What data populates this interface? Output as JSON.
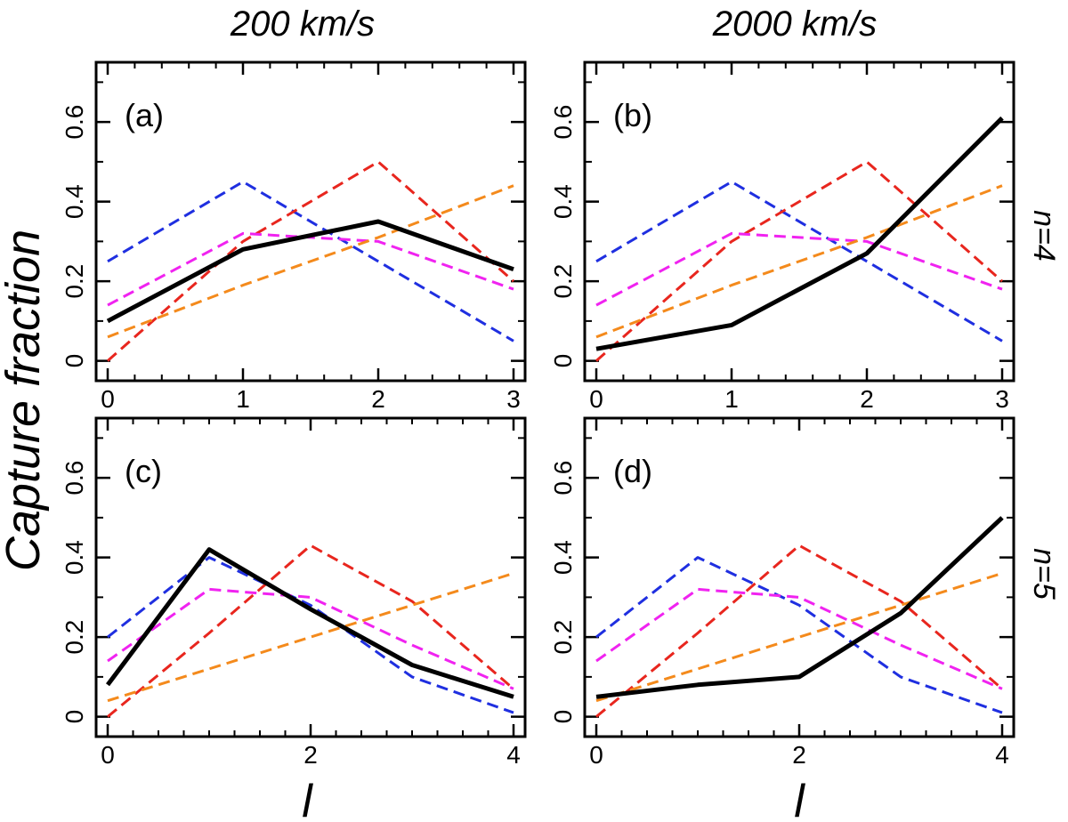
{
  "figure": {
    "ylabel": "Capture fraction",
    "col_titles": [
      "200 km/s",
      "2000 km/s"
    ],
    "row_labels": [
      "n=4",
      "n=5"
    ],
    "xlabel": "l"
  },
  "colors": {
    "blue": "#1f2fe0",
    "red": "#e8261e",
    "magenta": "#f023f0",
    "orange": "#f48a1c",
    "black": "#000000"
  },
  "chart_data": [
    {
      "type": "line",
      "panel_label": "(a)",
      "xlim": [
        0,
        3
      ],
      "ylim": [
        -0.05,
        0.75
      ],
      "xticks": [
        0,
        1,
        2,
        3
      ],
      "yticks": [
        0,
        0.2,
        0.4,
        0.6
      ],
      "ytick_labels": [
        "0",
        "0.2",
        "0.4",
        "0.6"
      ],
      "x": [
        0,
        1,
        2,
        3
      ],
      "series": [
        {
          "color": "blue",
          "style": "dashed",
          "values": [
            0.25,
            0.45,
            0.25,
            0.05
          ]
        },
        {
          "color": "red",
          "style": "dashed",
          "values": [
            0.0,
            0.3,
            0.5,
            0.2
          ]
        },
        {
          "color": "magenta",
          "style": "dashed",
          "values": [
            0.14,
            0.32,
            0.3,
            0.18
          ]
        },
        {
          "color": "orange",
          "style": "dashed",
          "values": [
            0.06,
            0.19,
            0.31,
            0.44
          ]
        },
        {
          "color": "black",
          "style": "solid",
          "values": [
            0.1,
            0.28,
            0.35,
            0.23
          ]
        }
      ]
    },
    {
      "type": "line",
      "panel_label": "(b)",
      "xlim": [
        0,
        3
      ],
      "ylim": [
        -0.05,
        0.75
      ],
      "xticks": [
        0,
        1,
        2,
        3
      ],
      "yticks": [
        0,
        0.2,
        0.4,
        0.6
      ],
      "ytick_labels": [
        "0",
        "0.2",
        "0.4",
        "0.6"
      ],
      "x": [
        0,
        1,
        2,
        3
      ],
      "series": [
        {
          "color": "blue",
          "style": "dashed",
          "values": [
            0.25,
            0.45,
            0.25,
            0.05
          ]
        },
        {
          "color": "red",
          "style": "dashed",
          "values": [
            0.0,
            0.3,
            0.5,
            0.2
          ]
        },
        {
          "color": "magenta",
          "style": "dashed",
          "values": [
            0.14,
            0.32,
            0.3,
            0.18
          ]
        },
        {
          "color": "orange",
          "style": "dashed",
          "values": [
            0.06,
            0.19,
            0.31,
            0.44
          ]
        },
        {
          "color": "black",
          "style": "solid",
          "values": [
            0.03,
            0.09,
            0.27,
            0.61
          ]
        }
      ]
    },
    {
      "type": "line",
      "panel_label": "(c)",
      "xlim": [
        0,
        4
      ],
      "ylim": [
        -0.05,
        0.75
      ],
      "xticks": [
        0,
        2,
        4
      ],
      "yticks": [
        0,
        0.2,
        0.4,
        0.6
      ],
      "ytick_labels": [
        "0",
        "0.2",
        "0.4",
        "0.6"
      ],
      "x": [
        0,
        1,
        2,
        3,
        4
      ],
      "series": [
        {
          "color": "blue",
          "style": "dashed",
          "values": [
            0.2,
            0.4,
            0.28,
            0.1,
            0.01
          ]
        },
        {
          "color": "red",
          "style": "dashed",
          "values": [
            0.0,
            0.21,
            0.43,
            0.29,
            0.07
          ]
        },
        {
          "color": "magenta",
          "style": "dashed",
          "values": [
            0.14,
            0.32,
            0.3,
            0.18,
            0.07
          ]
        },
        {
          "color": "orange",
          "style": "dashed",
          "values": [
            0.04,
            0.12,
            0.2,
            0.28,
            0.36
          ]
        },
        {
          "color": "black",
          "style": "solid",
          "values": [
            0.08,
            0.42,
            0.27,
            0.13,
            0.05
          ]
        }
      ]
    },
    {
      "type": "line",
      "panel_label": "(d)",
      "xlim": [
        0,
        4
      ],
      "ylim": [
        -0.05,
        0.75
      ],
      "xticks": [
        0,
        2,
        4
      ],
      "yticks": [
        0,
        0.2,
        0.4,
        0.6
      ],
      "ytick_labels": [
        "0",
        "0.2",
        "0.4",
        "0.6"
      ],
      "x": [
        0,
        1,
        2,
        3,
        4
      ],
      "series": [
        {
          "color": "blue",
          "style": "dashed",
          "values": [
            0.2,
            0.4,
            0.28,
            0.1,
            0.01
          ]
        },
        {
          "color": "red",
          "style": "dashed",
          "values": [
            0.0,
            0.21,
            0.43,
            0.29,
            0.07
          ]
        },
        {
          "color": "magenta",
          "style": "dashed",
          "values": [
            0.14,
            0.32,
            0.3,
            0.18,
            0.07
          ]
        },
        {
          "color": "orange",
          "style": "dashed",
          "values": [
            0.04,
            0.12,
            0.2,
            0.28,
            0.36
          ]
        },
        {
          "color": "black",
          "style": "solid",
          "values": [
            0.05,
            0.08,
            0.1,
            0.26,
            0.5
          ]
        }
      ]
    }
  ]
}
